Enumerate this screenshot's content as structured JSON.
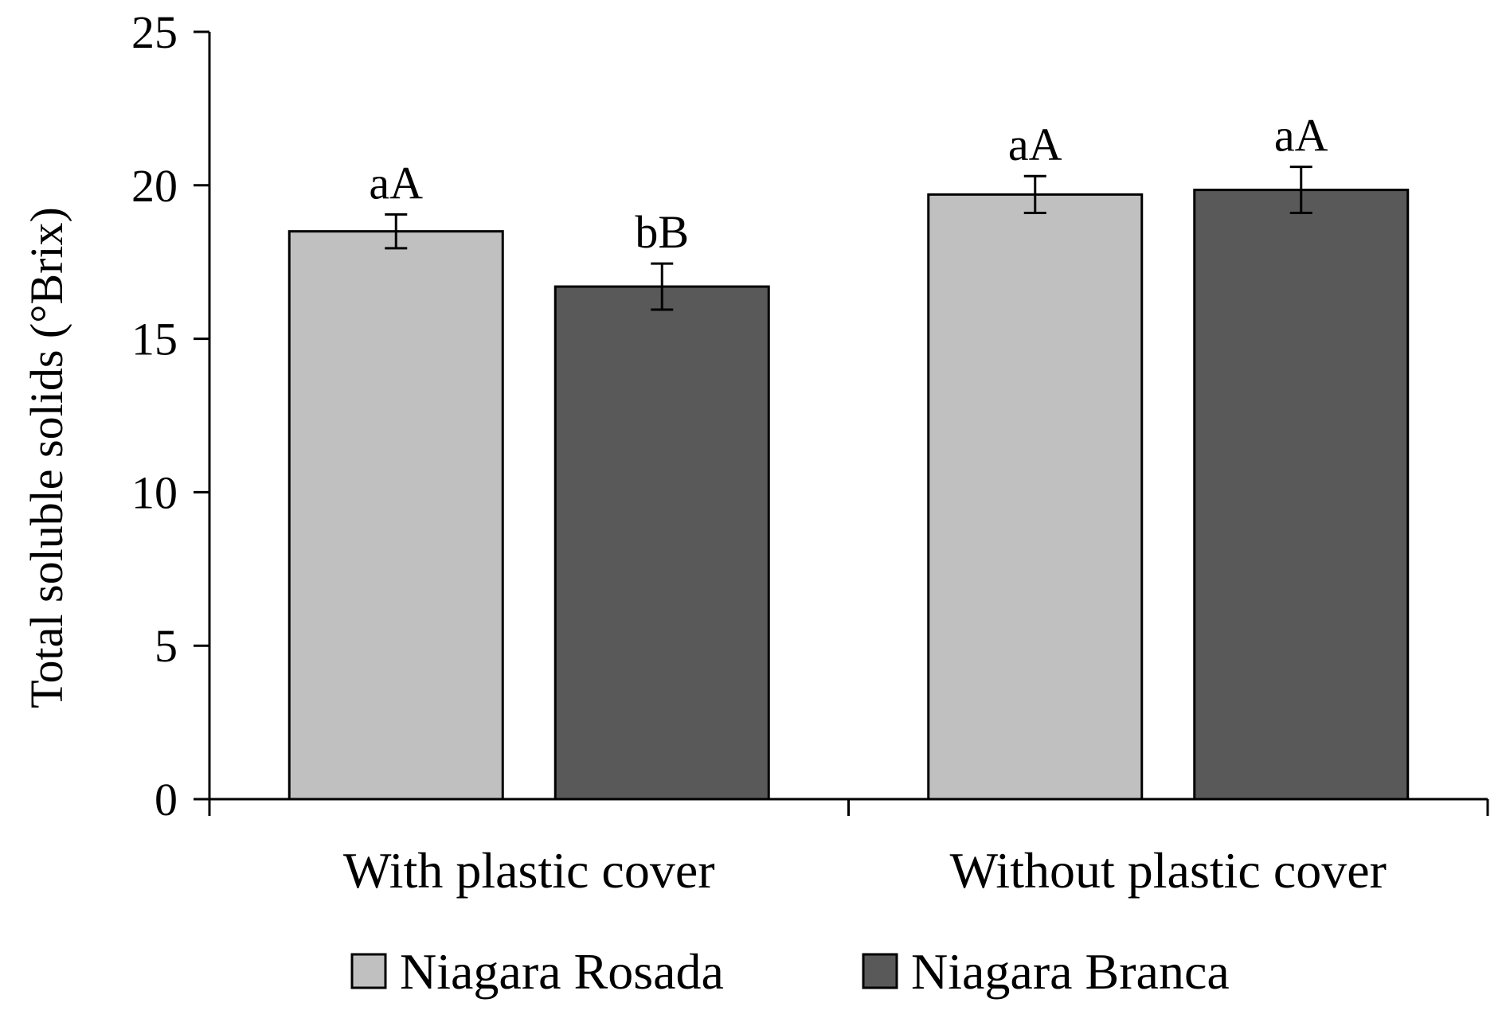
{
  "chart_data": {
    "type": "bar",
    "ylabel": "Total soluble solids (°Brix)",
    "ylim": [
      0,
      25
    ],
    "yticks": [
      0,
      5,
      10,
      15,
      20,
      25
    ],
    "grid": false,
    "legend_position": "bottom",
    "categories": [
      "With plastic cover",
      "Without plastic cover"
    ],
    "series": [
      {
        "name": "Niagara Rosada",
        "color": "#c0c0c0",
        "values": [
          18.5,
          19.7
        ],
        "errors": [
          0.55,
          0.6
        ],
        "letters": [
          "aA",
          "aA"
        ]
      },
      {
        "name": "Niagara Branca",
        "color": "#595959",
        "values": [
          16.7,
          19.85
        ],
        "errors": [
          0.75,
          0.75
        ],
        "letters": [
          "bB",
          "aA"
        ]
      }
    ]
  }
}
